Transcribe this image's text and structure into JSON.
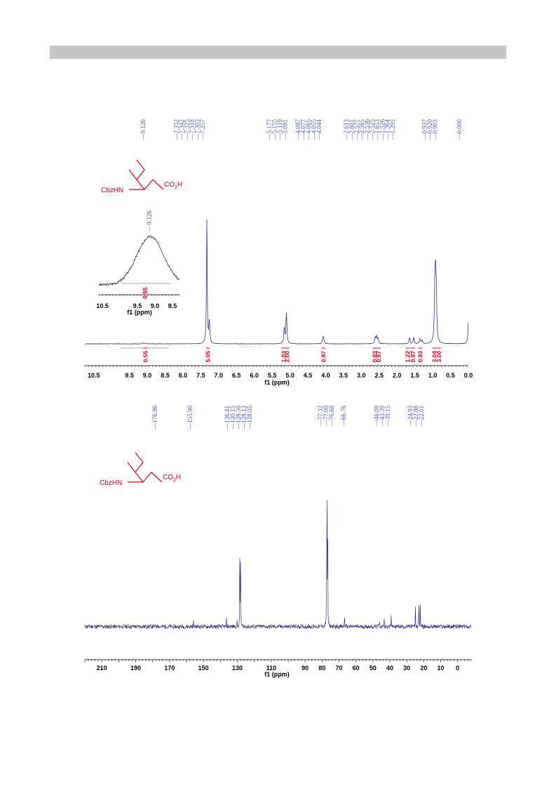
{
  "colors": {
    "spectrum": "#1a1a80",
    "peak_label": "#4a55c8",
    "integration": "#e8001c",
    "molecule": "#e8001c",
    "header_bar": "#c6c6c6"
  },
  "molecule": {
    "left_label": "CbzHN",
    "right_label": "CO",
    "right_sub": "2",
    "right_tail": "H"
  },
  "chart_data": [
    {
      "id": "h1",
      "type": "line",
      "xlabel": "f1 (ppm)",
      "xlim": [
        10.75,
        0.0
      ],
      "x_direction": "reversed",
      "x_ticks": [
        "10.5",
        "9.5",
        "9.0",
        "8.5",
        "8.0",
        "7.5",
        "7.0",
        "6.5",
        "6.0",
        "5.5",
        "5.0",
        "4.5",
        "4.0",
        "3.5",
        "3.0",
        "2.5",
        "2.0",
        "1.5",
        "1.0",
        "0.5",
        "0.0"
      ],
      "peak_labels": [
        "9.126",
        "7.352",
        "7.342",
        "7.325",
        "7.318",
        "7.303",
        "7.257",
        "5.177",
        "5.155",
        "5.119",
        "5.091",
        "4.087",
        "4.077",
        "4.065",
        "4.055",
        "4.044",
        "2.613",
        "2.601",
        "2.577",
        "2.565",
        "2.536",
        "2.525",
        "1.653",
        "1.526",
        "1.364",
        "1.293",
        "0.937",
        "0.920",
        "0.903",
        "0.000"
      ],
      "peaks": [
        {
          "x": 7.33,
          "h": 0.99
        },
        {
          "x": 7.26,
          "h": 0.17
        },
        {
          "x": 5.16,
          "h": 0.12
        },
        {
          "x": 5.1,
          "h": 0.24
        },
        {
          "x": 4.08,
          "h": 0.04
        },
        {
          "x": 4.06,
          "h": 0.04
        },
        {
          "x": 2.61,
          "h": 0.05
        },
        {
          "x": 2.57,
          "h": 0.06
        },
        {
          "x": 2.53,
          "h": 0.04
        },
        {
          "x": 1.65,
          "h": 0.05
        },
        {
          "x": 1.53,
          "h": 0.05
        },
        {
          "x": 1.36,
          "h": 0.04
        },
        {
          "x": 1.3,
          "h": 0.03
        },
        {
          "x": 0.94,
          "h": 0.35
        },
        {
          "x": 0.92,
          "h": 0.42
        },
        {
          "x": 0.9,
          "h": 0.33
        },
        {
          "x": 0.0,
          "h": 0.17
        },
        {
          "x": 9.1,
          "h": 0.01
        }
      ],
      "integrals": [
        {
          "x": 9.05,
          "label": "0.55"
        },
        {
          "x": 7.3,
          "label": "5.05"
        },
        {
          "x": 5.18,
          "label": "1.03"
        },
        {
          "x": 5.08,
          "label": "2.00"
        },
        {
          "x": 4.06,
          "label": "0.97"
        },
        {
          "x": 2.62,
          "label": "0.83"
        },
        {
          "x": 2.52,
          "label": "0.97"
        },
        {
          "x": 1.7,
          "label": "1.22"
        },
        {
          "x": 1.55,
          "label": "0.97"
        },
        {
          "x": 1.35,
          "label": "0.93"
        },
        {
          "x": 0.95,
          "label": "3.04"
        },
        {
          "x": 0.83,
          "label": "3.00"
        }
      ],
      "inset": {
        "xlabel": "f1 (ppm)",
        "xlim": [
          10.6,
          8.3
        ],
        "x_ticks": [
          "10.5",
          "9.5",
          "9.0",
          "8.5"
        ],
        "peak_label": "9.126",
        "integral_label": "0.55",
        "peak_center": 9.13
      }
    },
    {
      "id": "c13",
      "type": "line",
      "xlabel": "f1 (ppm)",
      "xlim": [
        220,
        -8
      ],
      "x_direction": "reversed",
      "x_ticks": [
        "210",
        "190",
        "170",
        "150",
        "130",
        "110",
        "90",
        "80",
        "70",
        "60",
        "50",
        "40",
        "30",
        "20",
        "10",
        "0"
      ],
      "peak_labels": [
        "176.86",
        "155.90",
        "136.41",
        "130.15",
        "128.50",
        "128.12",
        "128.05",
        "77.32",
        "77.00",
        "76.68",
        "66.76",
        "46.08",
        "43.39",
        "39.15",
        "24.93",
        "22.88",
        "22.01"
      ],
      "peaks": [
        {
          "x": 176.86,
          "h": 0.05
        },
        {
          "x": 155.9,
          "h": 0.05
        },
        {
          "x": 136.41,
          "h": 0.05
        },
        {
          "x": 130.15,
          "h": 0.05
        },
        {
          "x": 128.5,
          "h": 0.74
        },
        {
          "x": 128.12,
          "h": 0.35
        },
        {
          "x": 128.05,
          "h": 0.3
        },
        {
          "x": 77.32,
          "h": 0.99
        },
        {
          "x": 77.0,
          "h": 0.99
        },
        {
          "x": 76.68,
          "h": 0.99
        },
        {
          "x": 66.76,
          "h": 0.13
        },
        {
          "x": 46.08,
          "h": 0.1
        },
        {
          "x": 43.39,
          "h": 0.1
        },
        {
          "x": 39.15,
          "h": 0.1
        },
        {
          "x": 24.93,
          "h": 0.16
        },
        {
          "x": 22.88,
          "h": 0.25
        },
        {
          "x": 22.01,
          "h": 0.17
        }
      ]
    }
  ]
}
